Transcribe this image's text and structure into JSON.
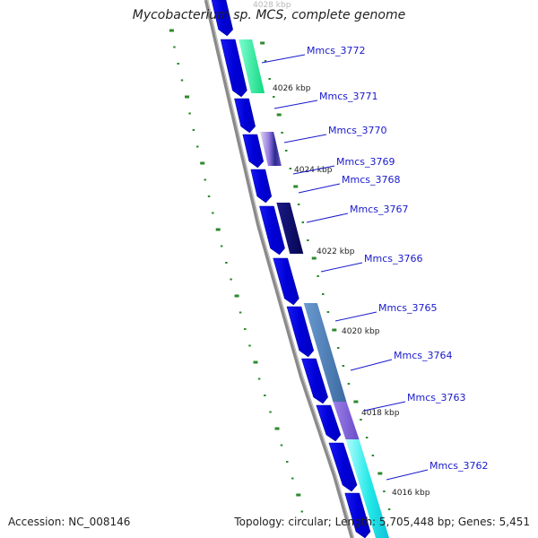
{
  "title": "Mycobacterium sp. MCS, complete genome",
  "footer": {
    "accession": "Accession: NC_008146",
    "topology": "Topology: circular; Length: 5,705,448 bp; Genes: 5,451"
  },
  "colors": {
    "backbone": "#8a8a8a",
    "cds_forward": "#1010ee",
    "tick": "#2d8a2d",
    "label_text": "#1a1acc",
    "label_line": "#1a1acc"
  },
  "position_labels": [
    {
      "text": "4028 kbp",
      "faint": true
    },
    {
      "text": "4026 kbp"
    },
    {
      "text": "4024 kbp"
    },
    {
      "text": "4022 kbp"
    },
    {
      "text": "4020 kbp"
    },
    {
      "text": "4018 kbp"
    },
    {
      "text": "4016 kbp"
    }
  ],
  "gene_labels": [
    "Mmcs_3772",
    "Mmcs_3771",
    "Mmcs_3770",
    "Mmcs_3769",
    "Mmcs_3768",
    "Mmcs_3767",
    "Mmcs_3766",
    "Mmcs_3765",
    "Mmcs_3764",
    "Mmcs_3763",
    "Mmcs_3762"
  ],
  "feature_colors": {
    "Mmcs_3772": "#22e09a",
    "Mmcs_3770": "#9a7de6",
    "Mmcs_3769": "#101070",
    "Mmcs_3767": "#0a0a6e",
    "Mmcs_3765": "#4a7ab0",
    "Mmcs_3763": "#7a5ad0",
    "Mmcs_3762": "#20e6e6"
  }
}
